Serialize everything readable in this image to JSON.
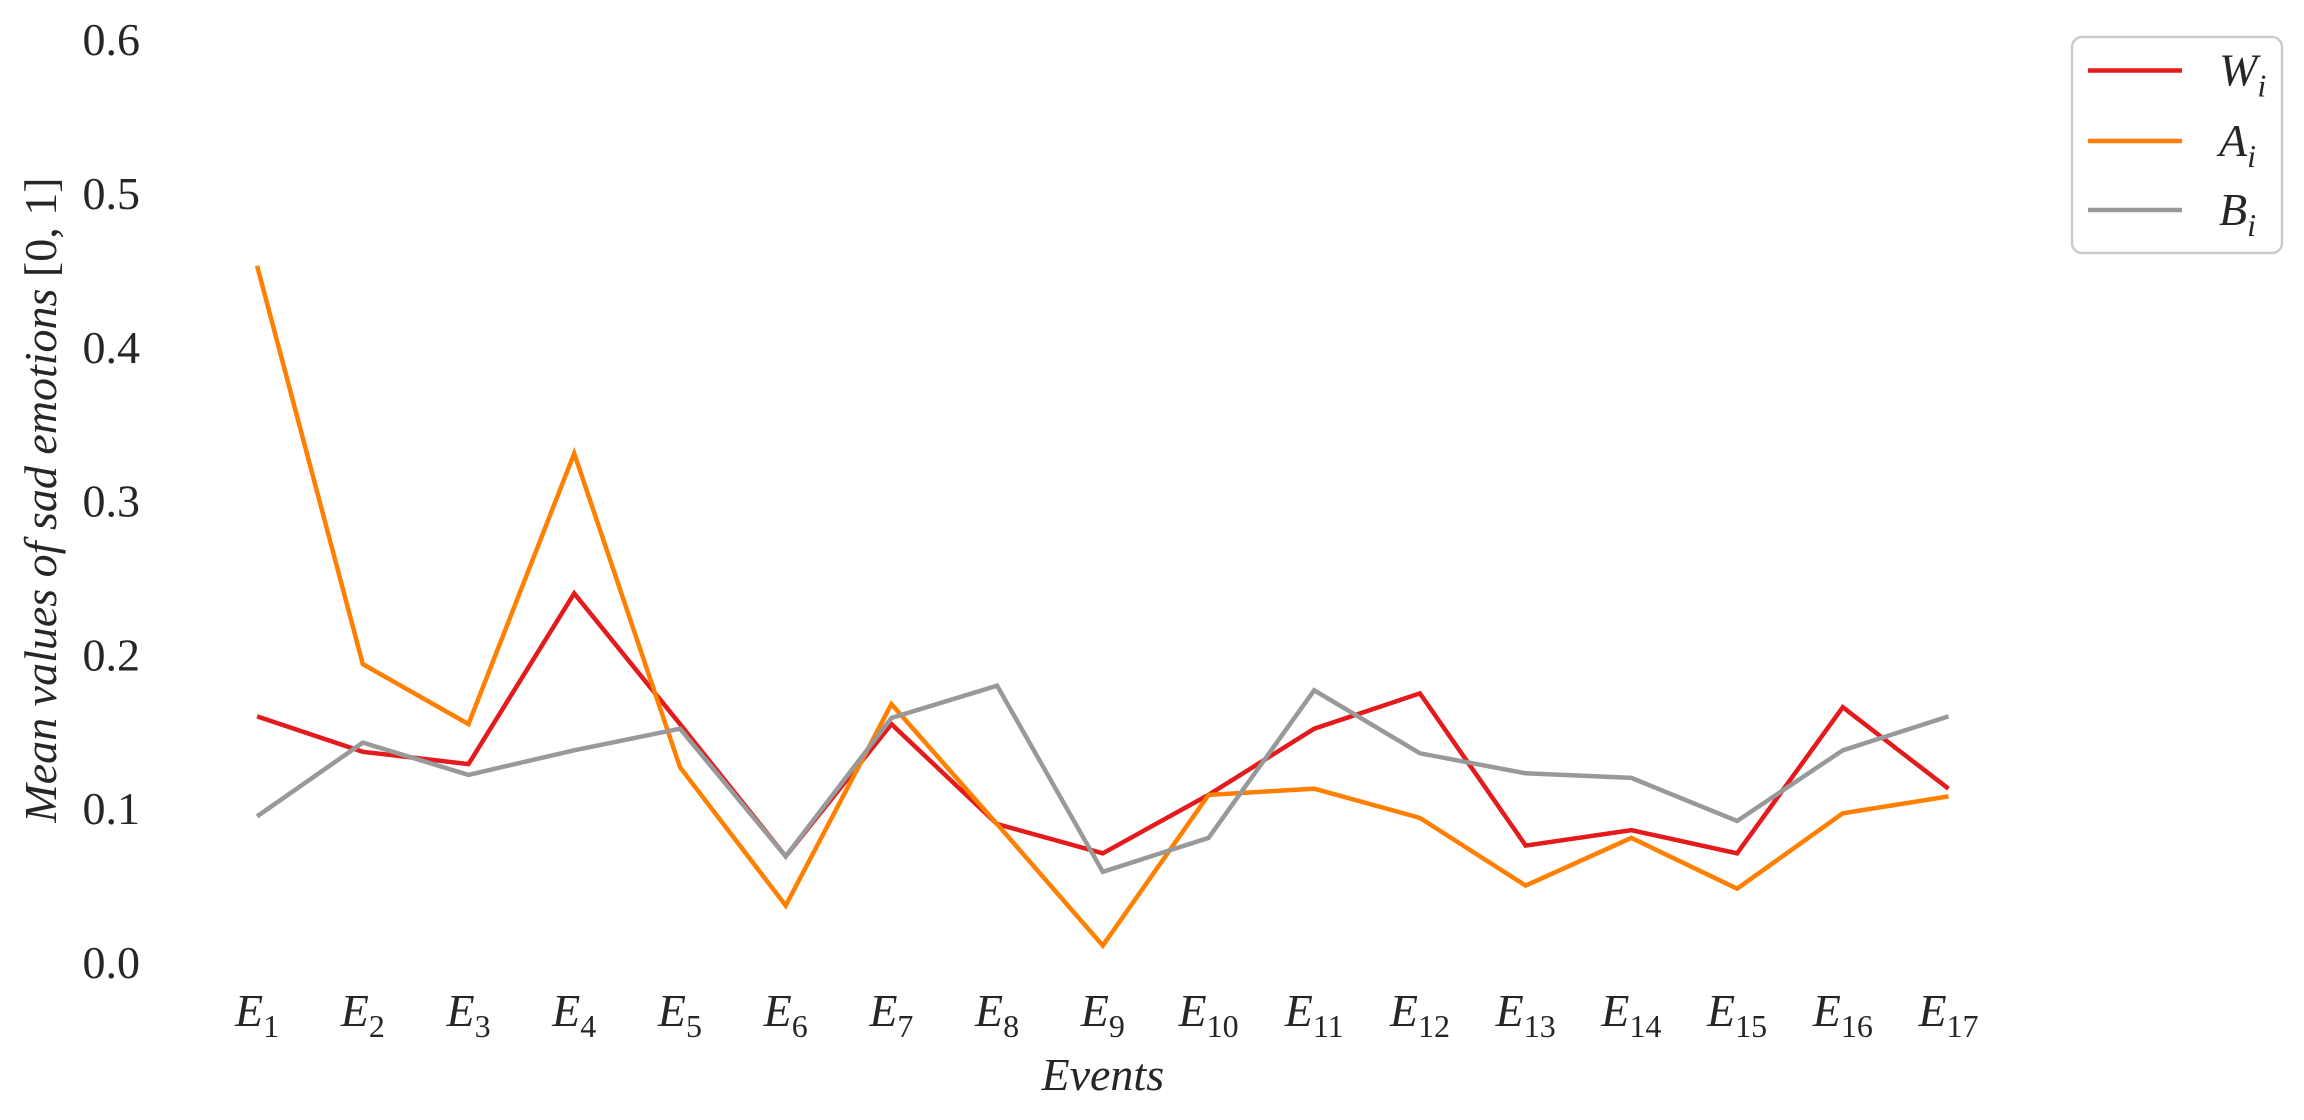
{
  "chart_data": {
    "type": "line",
    "title": "",
    "xlabel": "Events",
    "ylabel": "Mean values of sad emotions [0, 1]",
    "ylim": [
      0,
      0.6
    ],
    "yticks": [
      "0.0",
      "0.1",
      "0.2",
      "0.3",
      "0.4",
      "0.5",
      "0.6"
    ],
    "grid": false,
    "legend_position": "top-right (outside plot)",
    "categories": [
      "E1",
      "E2",
      "E3",
      "E4",
      "E5",
      "E6",
      "E7",
      "E8",
      "E9",
      "E10",
      "E11",
      "E12",
      "E13",
      "E14",
      "E15",
      "E16",
      "E17"
    ],
    "series": [
      {
        "name": "Wi",
        "color": "#e41a1c",
        "values": [
          0.16,
          0.137,
          0.129,
          0.24,
          0.155,
          0.069,
          0.155,
          0.09,
          0.071,
          0.109,
          0.152,
          0.175,
          0.076,
          0.086,
          0.071,
          0.166,
          0.113
        ]
      },
      {
        "name": "Ai",
        "color": "#ff7f00",
        "values": [
          0.453,
          0.194,
          0.155,
          0.331,
          0.127,
          0.037,
          0.168,
          0.09,
          0.011,
          0.109,
          0.113,
          0.094,
          0.05,
          0.081,
          0.048,
          0.097,
          0.108
        ]
      },
      {
        "name": "Bi",
        "color": "#999999",
        "values": [
          0.095,
          0.143,
          0.122,
          0.138,
          0.152,
          0.069,
          0.159,
          0.18,
          0.059,
          0.081,
          0.177,
          0.136,
          0.123,
          0.12,
          0.092,
          0.138,
          0.16
        ]
      }
    ]
  }
}
